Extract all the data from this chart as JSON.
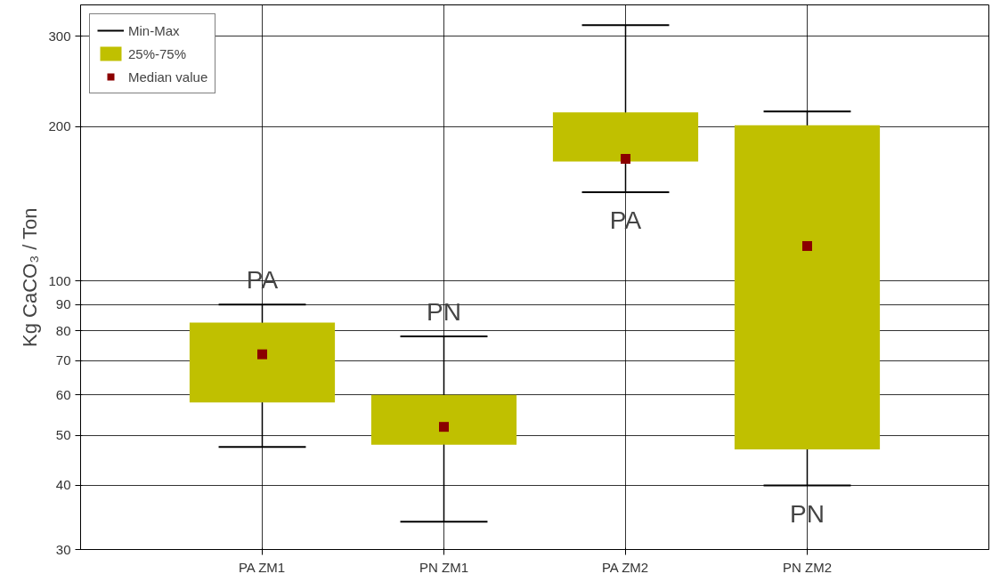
{
  "chart_data": {
    "type": "box",
    "ylabel": "Kg CaCO₃ / Ton",
    "log": true,
    "grid": true,
    "legend": "top left",
    "categories": [
      "PA ZM1",
      "PN ZM1",
      "PA ZM2",
      "PN ZM2"
    ],
    "ylim": [
      30,
      345
    ],
    "yticks": [
      30,
      40,
      50,
      60,
      70,
      80,
      90,
      100,
      200,
      300
    ],
    "series": [
      {
        "name": "25%-75%",
        "color": "#c0c000",
        "boxes": [
          {
            "low": 47.5,
            "q1": 58,
            "q3": 83,
            "high": 90
          },
          {
            "low": 34,
            "q1": 48,
            "q3": 60,
            "high": 78
          },
          {
            "low": 149,
            "q1": 171,
            "q3": 213,
            "high": 315
          },
          {
            "low": 40,
            "q1": 47,
            "q3": 201,
            "high": 214
          }
        ]
      },
      {
        "name": "Median value",
        "type": "scatter",
        "marker": "square",
        "color": "#8b0000",
        "x": [
          "PA ZM1",
          "PN ZM1",
          "PA ZM2",
          "PN ZM2"
        ],
        "values": [
          72,
          52,
          173,
          117
        ]
      }
    ],
    "annotations": [
      "Min-Max",
      "PA",
      "PN",
      "PA",
      "PN"
    ]
  }
}
